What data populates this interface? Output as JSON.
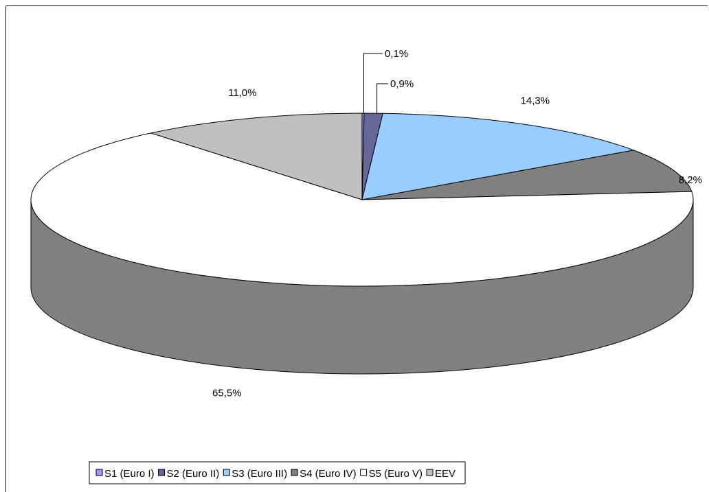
{
  "chart_data": {
    "type": "pie",
    "title": "",
    "categories": [
      "S1 (Euro I)",
      "S2 (Euro II)",
      "S3 (Euro III)",
      "S4 (Euro IV)",
      "S5 (Euro V)",
      "EEV"
    ],
    "values": [
      0.1,
      0.9,
      14.3,
      8.2,
      65.5,
      11.0
    ],
    "data_labels": [
      "0,1%",
      "0,9%",
      "14,3%",
      "8,2%",
      "65,5%",
      "11,0%"
    ],
    "colors": [
      "#9999ff",
      "#666699",
      "#99ccff",
      "#808080",
      "#ffffff",
      "#c0c0c0"
    ],
    "side_color": "#808080",
    "style": "3d",
    "legend_position": "bottom"
  }
}
